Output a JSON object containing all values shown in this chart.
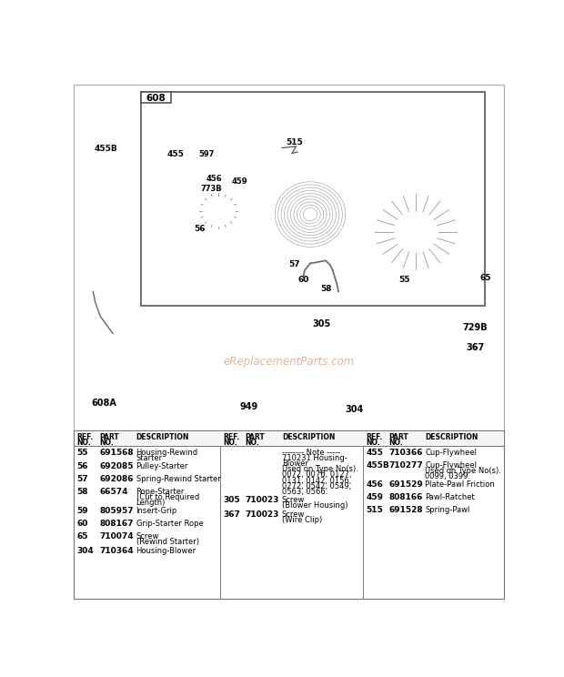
{
  "bg_color": "#ffffff",
  "watermark": "eReplacementParts.com",
  "col1_rows": [
    [
      "55",
      "691568",
      "Housing-Rewind\nStarter"
    ],
    [
      "56",
      "692085",
      "Pulley-Starter"
    ],
    [
      "57",
      "692086",
      "Spring-Rewind Starter"
    ],
    [
      "58",
      "66574",
      "Rope-Starter\n(Cut to Required\nLength)"
    ],
    [
      "59",
      "805957",
      "Insert-Grip"
    ],
    [
      "60",
      "808167",
      "Grip-Starter Rope"
    ],
    [
      "65",
      "710074",
      "Screw\n(Rewind Starter)"
    ],
    [
      "304",
      "710364",
      "Housing-Blower"
    ]
  ],
  "col2_rows": [
    [
      "",
      "",
      "-------- Note -----\n710231 Housing-\nBlower\nUsed on Type No(s).\n0072, 0076, 0127,\n0131, 0142, 0156,\n0272, 0542, 0549,\n0563, 0566."
    ],
    [
      "305",
      "710023",
      "Screw\n(Blower Housing)"
    ],
    [
      "367",
      "710023",
      "Screw\n(Wire Clip)"
    ]
  ],
  "col3_rows": [
    [
      "455",
      "710366",
      "Cup-Flywheel"
    ],
    [
      "455B",
      "710277",
      "Cup-Flywheel\nUsed on Type No(s).\n0099, 0399."
    ],
    [
      "456",
      "691529",
      "Plate-Pawl Friction"
    ],
    [
      "459",
      "808166",
      "Pawl-Ratchet"
    ],
    [
      "515",
      "691528",
      "Spring-Pawl"
    ]
  ]
}
